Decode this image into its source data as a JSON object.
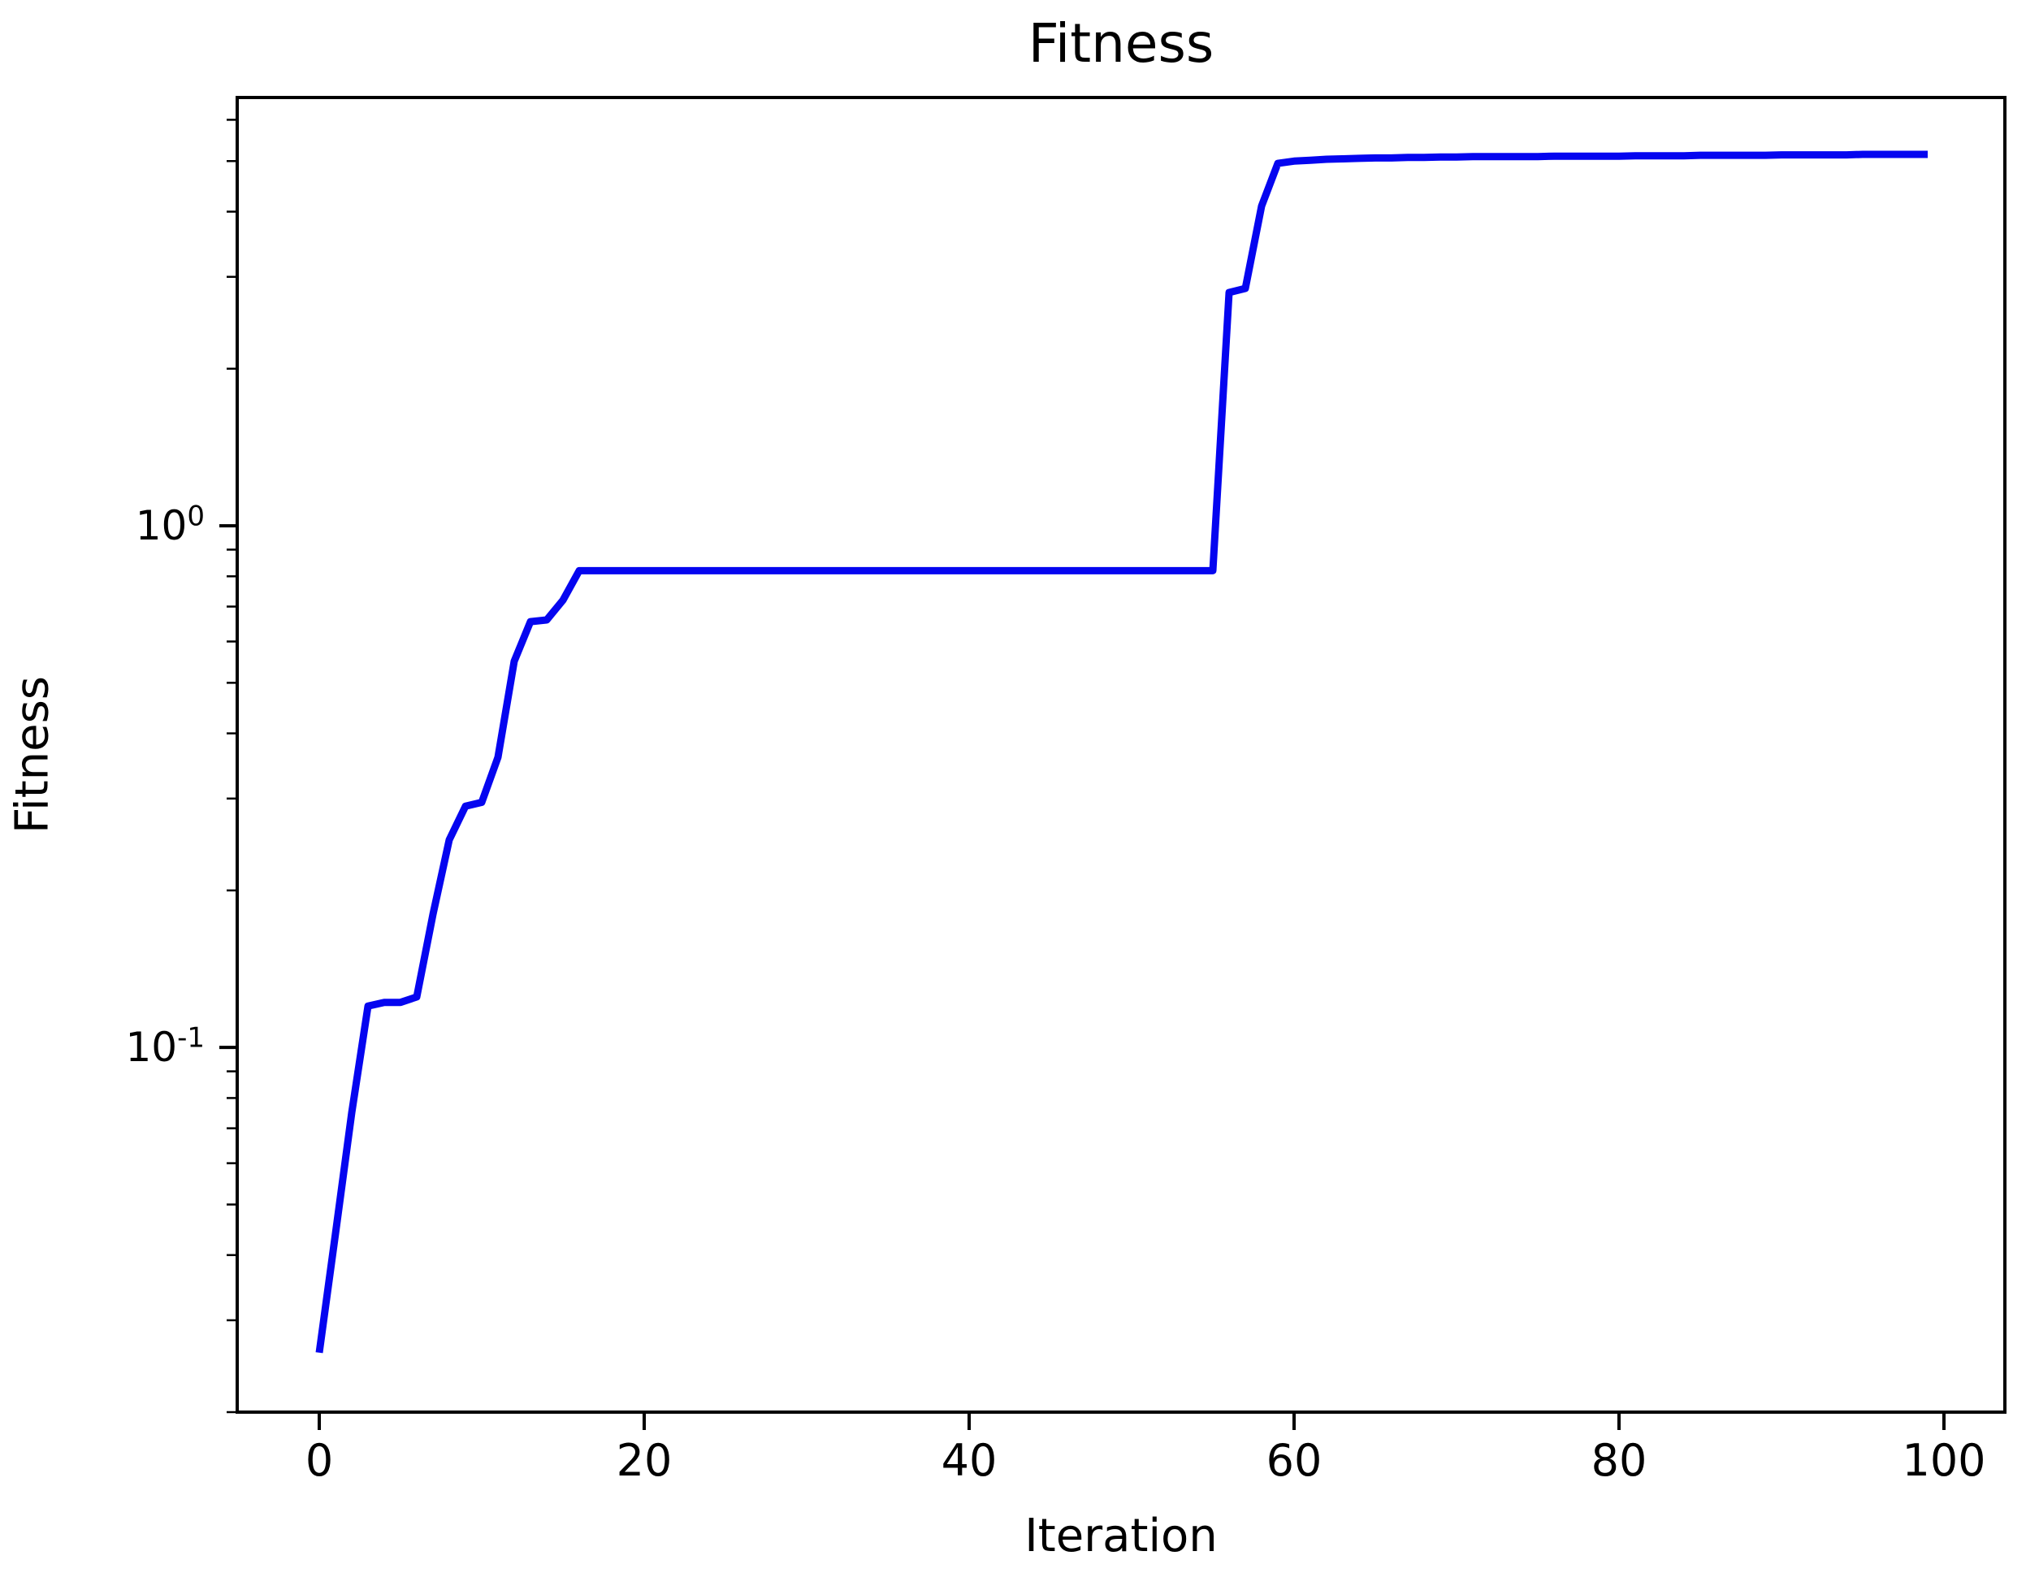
{
  "chart_data": {
    "type": "line",
    "title": "Fitness",
    "xlabel": "Iteration",
    "ylabel": "Fitness",
    "yscale": "log",
    "grid": false,
    "legend": null,
    "xlim": [
      -5.05,
      103.75
    ],
    "ylim": [
      0.02,
      6.62
    ],
    "xticks": [
      0,
      20,
      40,
      60,
      80,
      100
    ],
    "yticks_major": [
      {
        "value": 1,
        "label": "10^0"
      },
      {
        "value": 0.1,
        "label": "10^-1"
      }
    ],
    "yticks_minor": [
      0.02,
      0.03,
      0.04,
      0.05,
      0.06,
      0.07,
      0.08,
      0.09,
      0.2,
      0.3,
      0.4,
      0.5,
      0.6,
      0.7,
      0.8,
      0.9,
      2,
      3,
      4,
      5,
      6
    ],
    "line_color": "#0505F0",
    "axis_color": "#000000",
    "x": [
      0,
      1,
      2,
      3,
      4,
      5,
      6,
      7,
      8,
      9,
      10,
      11,
      12,
      13,
      14,
      15,
      16,
      17,
      18,
      19,
      20,
      21,
      22,
      23,
      24,
      25,
      26,
      27,
      28,
      29,
      30,
      31,
      32,
      33,
      34,
      35,
      36,
      37,
      38,
      39,
      40,
      41,
      42,
      43,
      44,
      45,
      46,
      47,
      48,
      49,
      50,
      51,
      52,
      53,
      54,
      55,
      56,
      57,
      58,
      59,
      60,
      61,
      62,
      63,
      64,
      65,
      66,
      67,
      68,
      69,
      70,
      71,
      72,
      73,
      74,
      75,
      76,
      77,
      78,
      79,
      80,
      81,
      82,
      83,
      84,
      85,
      86,
      87,
      88,
      89,
      90,
      91,
      92,
      93,
      94,
      95,
      96,
      97,
      98,
      99
    ],
    "values": [
      0.026,
      0.044,
      0.075,
      0.12,
      0.122,
      0.122,
      0.125,
      0.18,
      0.25,
      0.29,
      0.295,
      0.36,
      0.55,
      0.655,
      0.66,
      0.72,
      0.82,
      0.82,
      0.82,
      0.82,
      0.82,
      0.82,
      0.82,
      0.82,
      0.82,
      0.82,
      0.82,
      0.82,
      0.82,
      0.82,
      0.82,
      0.82,
      0.82,
      0.82,
      0.82,
      0.82,
      0.82,
      0.82,
      0.82,
      0.82,
      0.82,
      0.82,
      0.82,
      0.82,
      0.82,
      0.82,
      0.82,
      0.82,
      0.82,
      0.82,
      0.82,
      0.82,
      0.82,
      0.82,
      0.82,
      0.82,
      2.8,
      2.85,
      4.1,
      4.95,
      5.0,
      5.02,
      5.04,
      5.05,
      5.06,
      5.07,
      5.07,
      5.08,
      5.08,
      5.09,
      5.09,
      5.1,
      5.1,
      5.1,
      5.1,
      5.1,
      5.11,
      5.11,
      5.11,
      5.11,
      5.11,
      5.12,
      5.12,
      5.12,
      5.12,
      5.13,
      5.13,
      5.13,
      5.13,
      5.13,
      5.14,
      5.14,
      5.14,
      5.14,
      5.14,
      5.15,
      5.15,
      5.15,
      5.15,
      5.15
    ]
  }
}
